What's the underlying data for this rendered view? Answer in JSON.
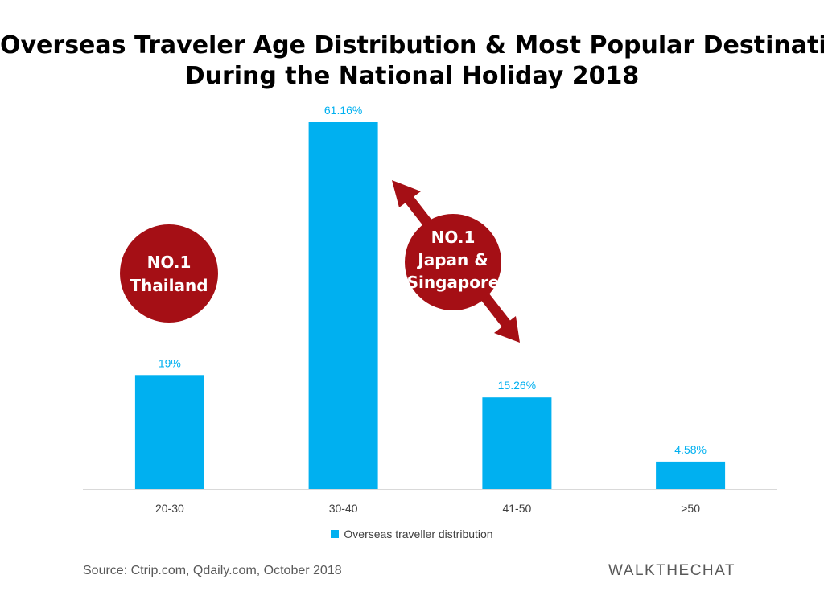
{
  "chart_data": {
    "type": "bar",
    "title_lines": [
      "Overseas Traveler Age Distribution & Most Popular Destination",
      "During the National Holiday 2018"
    ],
    "categories": [
      "20-30",
      "30-40",
      "41-50",
      ">50"
    ],
    "series": [
      {
        "name": "Overseas traveller distribution",
        "values": [
          19,
          61.16,
          15.26,
          4.58
        ],
        "labels": [
          "19%",
          "61.16%",
          "15.26%",
          "4.58%"
        ]
      }
    ],
    "ylim": [
      0,
      62
    ],
    "grid": false,
    "legend_position": "bottom",
    "annotations": [
      {
        "lines": [
          "NO.1",
          "Thailand"
        ]
      },
      {
        "lines": [
          "NO.1",
          "Japan &",
          "Singapore"
        ]
      }
    ],
    "colors": {
      "bar": "#00b0f0",
      "label": "#00b0f0",
      "annotation": "#a50f15",
      "axis": "#d9d9d9",
      "tick": "#404040"
    }
  },
  "footer": {
    "source": "Source: Ctrip.com, Qdaily.com, October 2018",
    "brand": "WALKTHECHAT"
  }
}
